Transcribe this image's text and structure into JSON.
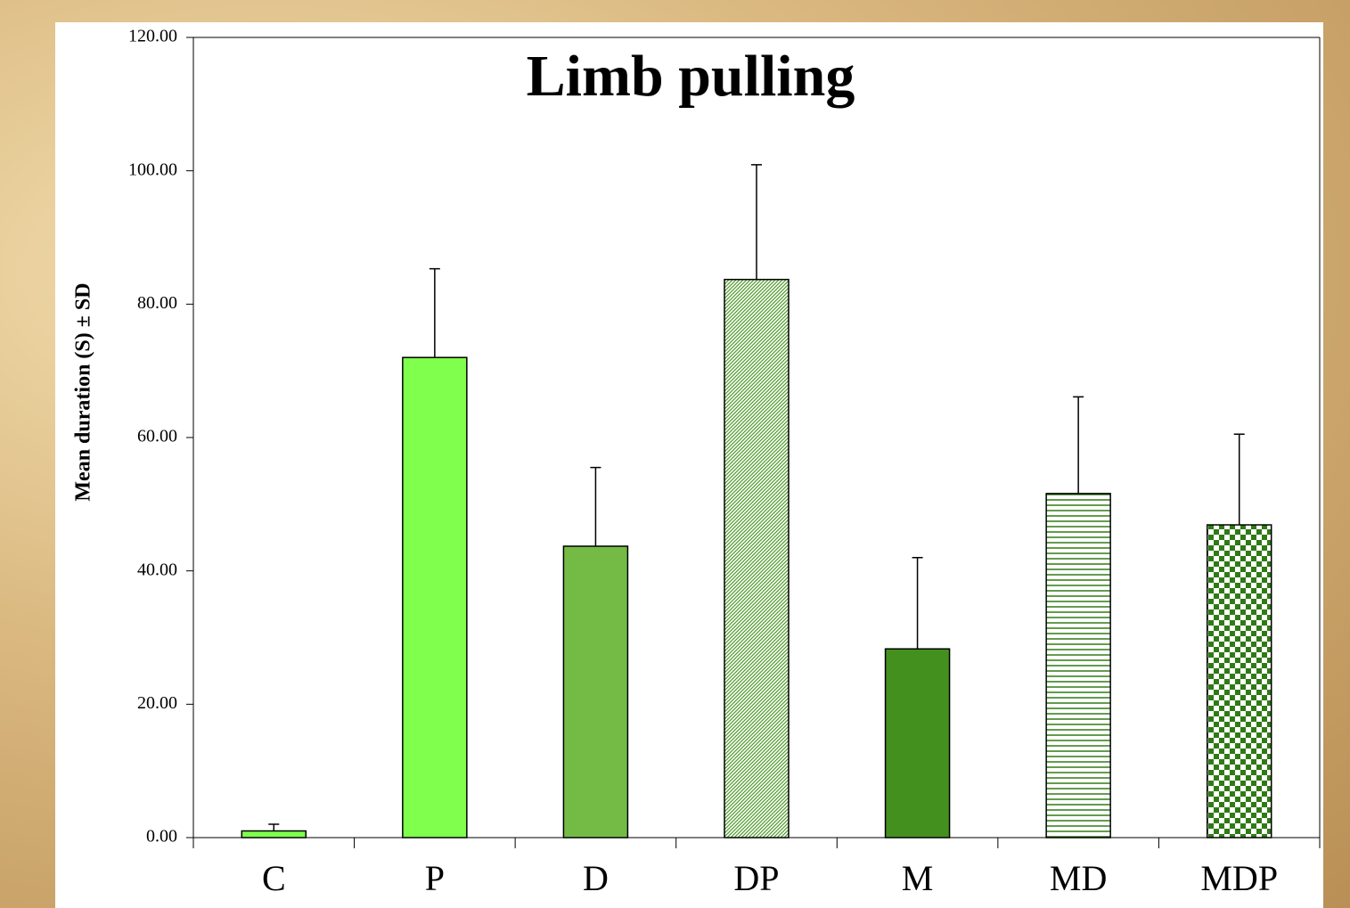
{
  "chart_data": {
    "type": "bar",
    "title": "Limb pulling",
    "ylabel": "Mean duration (S) ± SD",
    "categories": [
      "C",
      "P",
      "D",
      "DP",
      "M",
      "MD",
      "MDP"
    ],
    "values": [
      1.0,
      72.0,
      43.7,
      83.7,
      28.3,
      51.6,
      46.9
    ],
    "errors": [
      1.0,
      13.3,
      11.8,
      17.2,
      13.7,
      14.5,
      13.6
    ],
    "colors": [
      "#80ff4d",
      "#80ff4d",
      "#74bb45",
      "#4e9a2a",
      "#43901e",
      "#2f7a14",
      "#2f7a14"
    ],
    "patterns": [
      "solid",
      "solid",
      "solid",
      "diagonal",
      "solid",
      "horizontal",
      "checker"
    ],
    "ylim": [
      0,
      120
    ],
    "yticks": [
      {
        "value": 0,
        "label": "0.00"
      },
      {
        "value": 20,
        "label": "20.00"
      },
      {
        "value": 40,
        "label": "40.00"
      },
      {
        "value": 60,
        "label": "60.00"
      },
      {
        "value": 80,
        "label": "80.00"
      },
      {
        "value": 100,
        "label": "100.00"
      },
      {
        "value": 120,
        "label": "120.00"
      }
    ]
  }
}
